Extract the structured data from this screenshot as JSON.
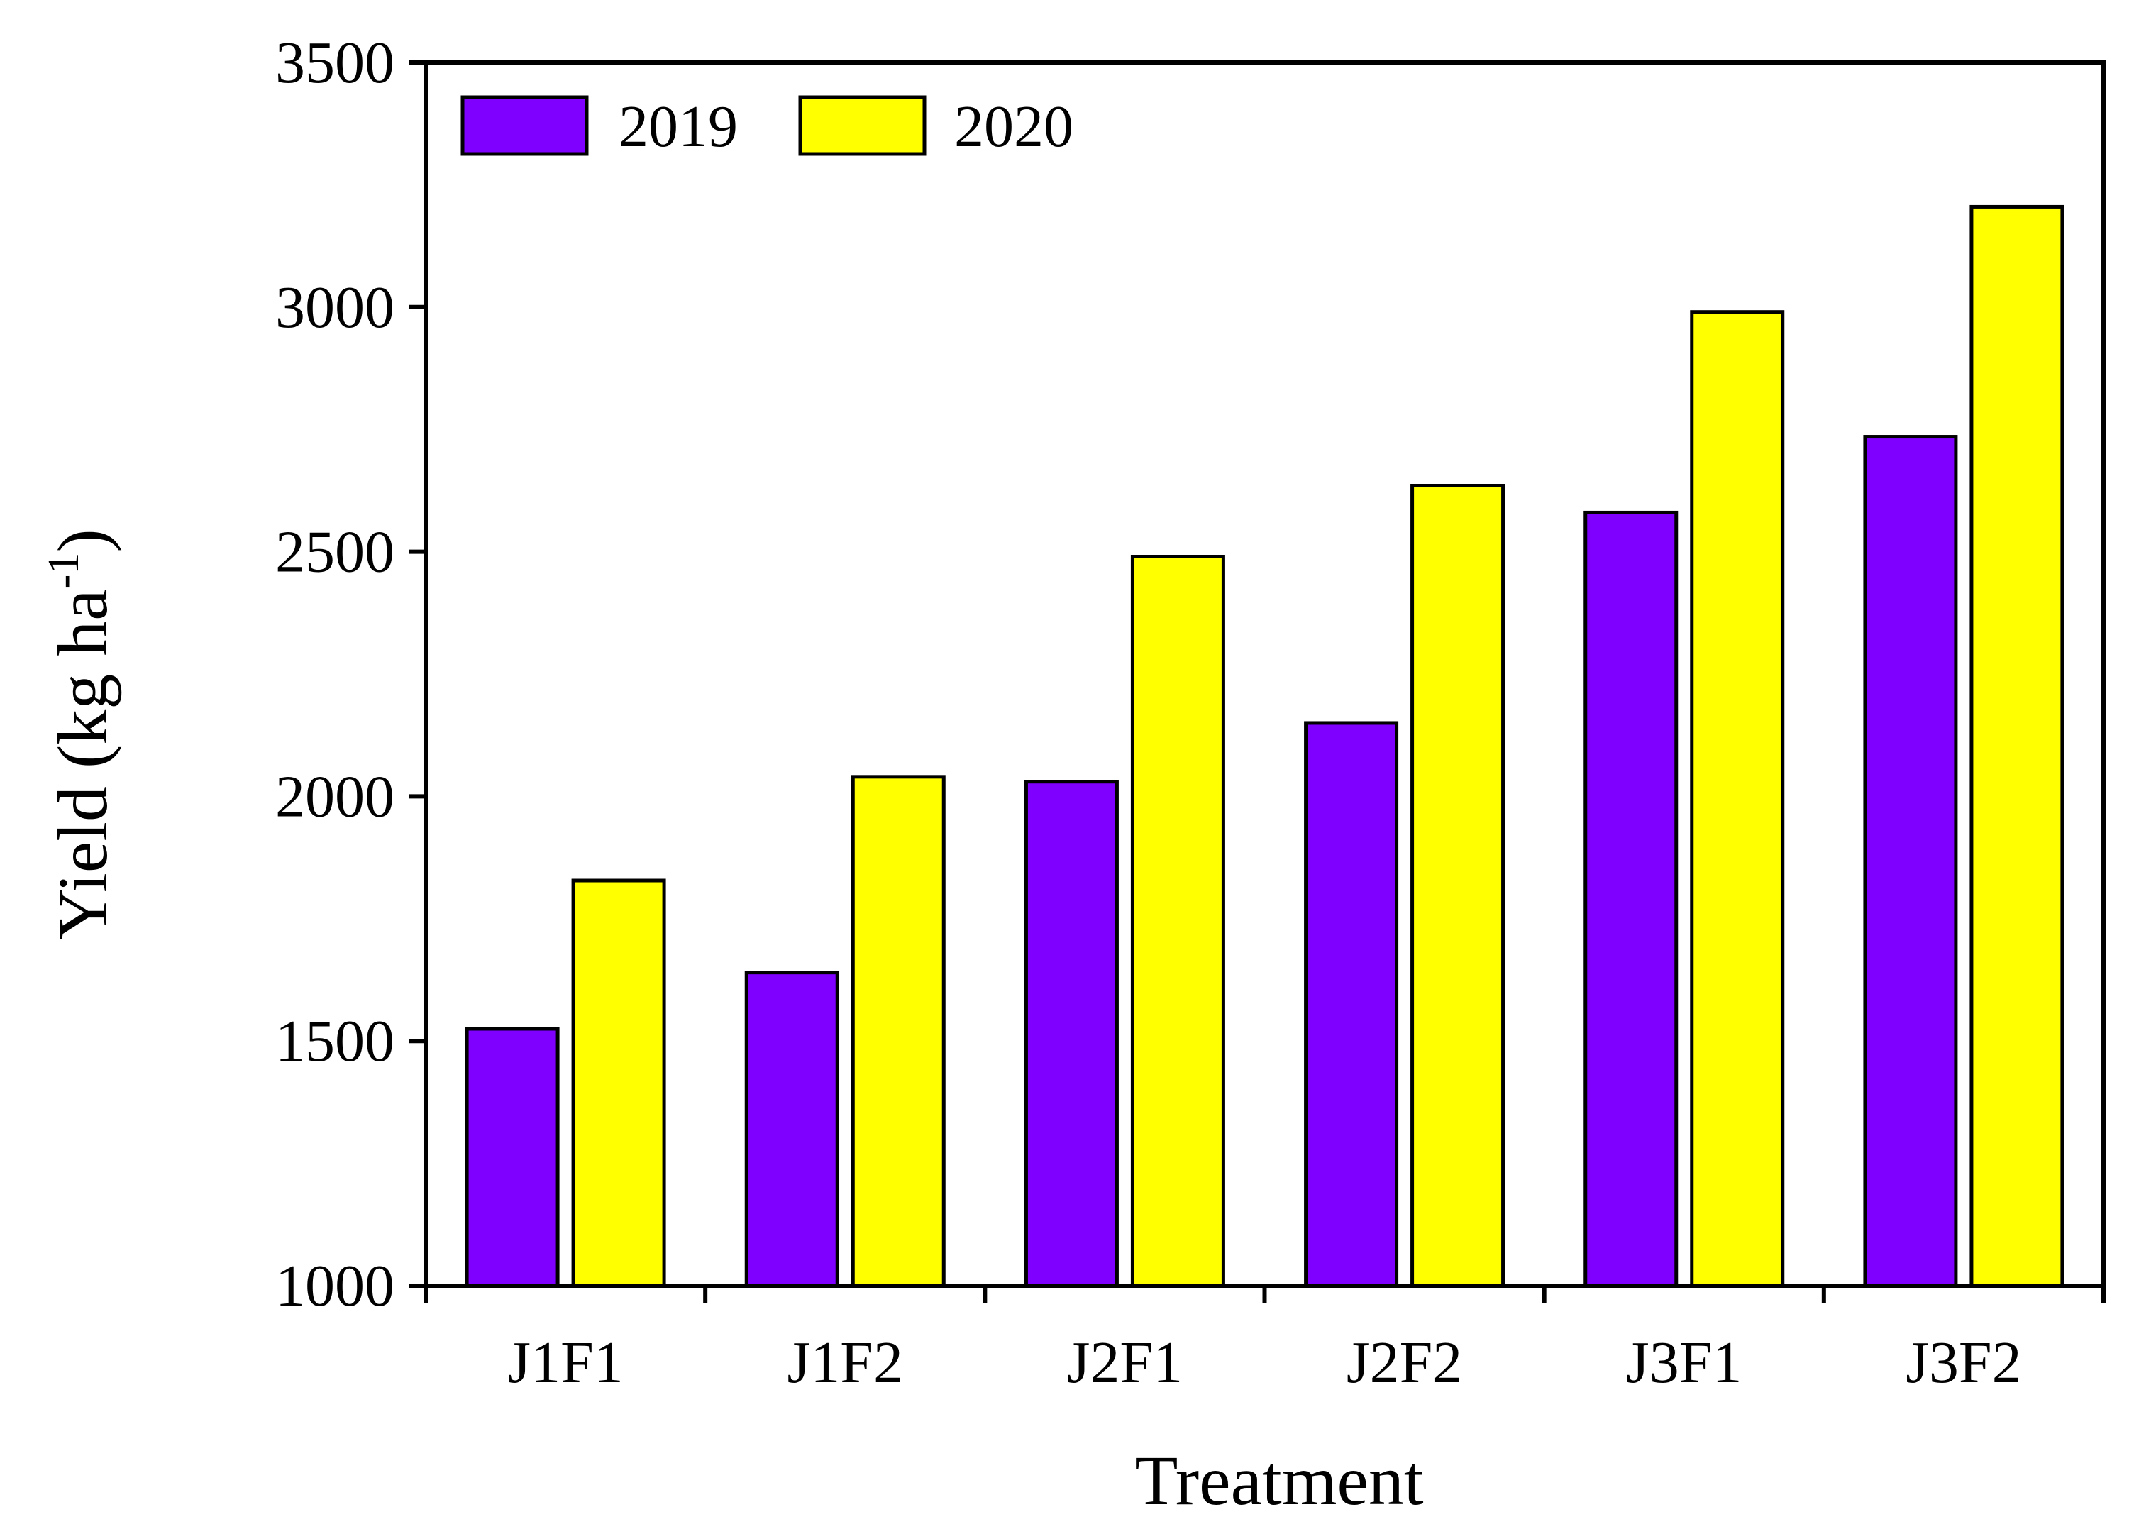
{
  "chart_data": {
    "type": "bar",
    "xlabel": "Treatment",
    "ylabel": "Yield (kg ha",
    "ylabel_sup": "-1",
    "ylabel_close": ")",
    "categories": [
      "J1F1",
      "J1F2",
      "J2F1",
      "J2F2",
      "J3F1",
      "J3F2"
    ],
    "series": [
      {
        "name": "2019",
        "color": "#7F00FF",
        "values": [
          1525,
          1640,
          2030,
          2150,
          2580,
          2735
        ]
      },
      {
        "name": "2020",
        "color": "#FFFF00",
        "values": [
          1828,
          2040,
          2490,
          2635,
          2990,
          3205
        ]
      }
    ],
    "ylim": [
      1000,
      3500
    ],
    "yticks": [
      1000,
      1500,
      2000,
      2500,
      3000,
      3500
    ],
    "ytick_labels": [
      "1000",
      "1500",
      "2000",
      "2500",
      "3000",
      "3500"
    ],
    "grid": false,
    "legend_position": "top-left"
  }
}
